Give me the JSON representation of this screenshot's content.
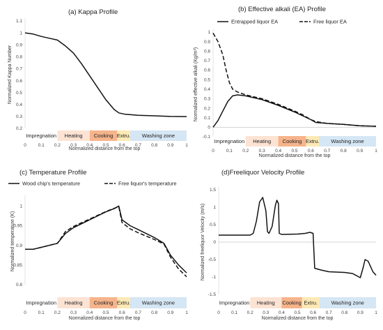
{
  "chart_data": [
    {
      "id": "a",
      "type": "line",
      "title": "(a) Kappa Profile",
      "xlabel": "Normalized distance from the top",
      "ylabel": "Normalized Kappa Number",
      "xlim": [
        0,
        1
      ],
      "ylim": [
        0.2,
        1.1
      ],
      "xticks": [
        "0",
        "0.1",
        "0.2",
        "0.3",
        "0.4",
        "0.5",
        "0.6",
        "0.7",
        "0.8",
        "0.9",
        "1"
      ],
      "yticks": [
        "0.2",
        "0.3",
        "0.4",
        "0.5",
        "0.6",
        "0.7",
        "0.8",
        "0.9",
        "1",
        "1.1"
      ],
      "zero_line": false,
      "zones": [
        {
          "label": "Impregnation",
          "from": 0,
          "to": 0.2,
          "color": "#ffffff"
        },
        {
          "label": "Heating",
          "from": 0.2,
          "to": 0.4,
          "color": "#fde3d3"
        },
        {
          "label": "Cooking",
          "from": 0.4,
          "to": 0.57,
          "color": "#f6b48b"
        },
        {
          "label": "Extru.",
          "from": 0.57,
          "to": 0.65,
          "color": "#fde9b5"
        },
        {
          "label": "Washing zone",
          "from": 0.65,
          "to": 1,
          "color": "#d5e6f4"
        }
      ],
      "series": [
        {
          "dash": false,
          "points": [
            [
              0,
              1
            ],
            [
              0.05,
              0.99
            ],
            [
              0.1,
              0.97
            ],
            [
              0.15,
              0.955
            ],
            [
              0.2,
              0.94
            ],
            [
              0.25,
              0.89
            ],
            [
              0.3,
              0.83
            ],
            [
              0.35,
              0.74
            ],
            [
              0.4,
              0.64
            ],
            [
              0.45,
              0.54
            ],
            [
              0.5,
              0.44
            ],
            [
              0.55,
              0.36
            ],
            [
              0.58,
              0.33
            ],
            [
              0.62,
              0.318
            ],
            [
              0.7,
              0.31
            ],
            [
              0.8,
              0.305
            ],
            [
              0.9,
              0.3
            ],
            [
              1,
              0.299
            ]
          ]
        }
      ]
    },
    {
      "id": "b",
      "type": "line",
      "title": "(b) Effective alkali (EA) Profile",
      "xlabel": "Normalized distance from the top",
      "ylabel": "Normalized effective alkali (Kg/m³)",
      "xlim": [
        0,
        1
      ],
      "ylim": [
        -0.1,
        1
      ],
      "xticks": [
        "0",
        "0.1",
        "0.2",
        "0.3",
        "0.4",
        "0.5",
        "0.6",
        "0.7",
        "0.8",
        "0.9",
        "1"
      ],
      "yticks": [
        "-0.1",
        "0",
        "0.1",
        "0.2",
        "0.3",
        "0.4",
        "0.5",
        "0.6",
        "0.7",
        "0.8",
        "0.9",
        "1"
      ],
      "zero_line": true,
      "zones": [
        {
          "label": "Impregnation",
          "from": 0,
          "to": 0.2,
          "color": "#ffffff"
        },
        {
          "label": "Heating",
          "from": 0.2,
          "to": 0.4,
          "color": "#fde3d3"
        },
        {
          "label": "Cooking",
          "from": 0.4,
          "to": 0.57,
          "color": "#f6b48b"
        },
        {
          "label": "Extru.",
          "from": 0.57,
          "to": 0.65,
          "color": "#fde9b5"
        },
        {
          "label": "Washing zone",
          "from": 0.65,
          "to": 1,
          "color": "#d5e6f4"
        }
      ],
      "legend": [
        "Entrapped liquor EA",
        "Free liquor EA"
      ],
      "series": [
        {
          "name": "Entrapped liquor EA",
          "dash": false,
          "points": [
            [
              0,
              0
            ],
            [
              0.03,
              0.07
            ],
            [
              0.06,
              0.17
            ],
            [
              0.09,
              0.27
            ],
            [
              0.12,
              0.33
            ],
            [
              0.15,
              0.34
            ],
            [
              0.2,
              0.33
            ],
            [
              0.3,
              0.29
            ],
            [
              0.4,
              0.23
            ],
            [
              0.5,
              0.16
            ],
            [
              0.55,
              0.12
            ],
            [
              0.6,
              0.08
            ],
            [
              0.63,
              0.05
            ],
            [
              0.7,
              0.04
            ],
            [
              0.8,
              0.03
            ],
            [
              0.9,
              0.015
            ],
            [
              1,
              0.01
            ]
          ]
        },
        {
          "name": "Free liquor EA",
          "dash": true,
          "points": [
            [
              0,
              0.99
            ],
            [
              0.03,
              0.9
            ],
            [
              0.06,
              0.76
            ],
            [
              0.08,
              0.6
            ],
            [
              0.1,
              0.47
            ],
            [
              0.12,
              0.4
            ],
            [
              0.15,
              0.37
            ],
            [
              0.2,
              0.34
            ],
            [
              0.3,
              0.3
            ],
            [
              0.4,
              0.24
            ],
            [
              0.5,
              0.17
            ],
            [
              0.55,
              0.13
            ],
            [
              0.6,
              0.08
            ],
            [
              0.63,
              0.06
            ],
            [
              0.7,
              0.04
            ],
            [
              0.8,
              0.03
            ],
            [
              0.9,
              0.015
            ],
            [
              1,
              0.01
            ]
          ]
        }
      ]
    },
    {
      "id": "c",
      "type": "line",
      "title": "(c) Temperature Profile",
      "xlabel": "Normalized distance from the top",
      "ylabel": "Normalized temperature (K)",
      "xlim": [
        0,
        1
      ],
      "ylim": [
        0.8,
        1.02
      ],
      "xticks": [
        "0",
        "0.1",
        "0.2",
        "0.3",
        "0.4",
        "0.5",
        "0.6",
        "0.7",
        "0.8",
        "0.9",
        "1"
      ],
      "yticks": [
        "0.8",
        "0.85",
        "0.9",
        "0.95",
        "1"
      ],
      "zero_line": false,
      "zones": [
        {
          "label": "Impregnation",
          "from": 0,
          "to": 0.2,
          "color": "#ffffff"
        },
        {
          "label": "Heating",
          "from": 0.2,
          "to": 0.4,
          "color": "#fde3d3"
        },
        {
          "label": "Cooking",
          "from": 0.4,
          "to": 0.57,
          "color": "#f6b48b"
        },
        {
          "label": "Extru.",
          "from": 0.57,
          "to": 0.65,
          "color": "#fde9b5"
        },
        {
          "label": "Washing zone",
          "from": 0.65,
          "to": 1,
          "color": "#d5e6f4"
        }
      ],
      "legend": [
        "Wood chip's temperature",
        "Free liquor's temperature"
      ],
      "series": [
        {
          "name": "Wood chip's temperature",
          "dash": false,
          "points": [
            [
              0,
              0.89
            ],
            [
              0.05,
              0.89
            ],
            [
              0.1,
              0.895
            ],
            [
              0.2,
              0.905
            ],
            [
              0.25,
              0.93
            ],
            [
              0.3,
              0.945
            ],
            [
              0.4,
              0.965
            ],
            [
              0.5,
              0.985
            ],
            [
              0.55,
              0.993
            ],
            [
              0.58,
              1
            ],
            [
              0.6,
              0.965
            ],
            [
              0.65,
              0.95
            ],
            [
              0.7,
              0.94
            ],
            [
              0.8,
              0.92
            ],
            [
              0.86,
              0.905
            ],
            [
              0.9,
              0.875
            ],
            [
              0.95,
              0.85
            ],
            [
              1,
              0.83
            ]
          ]
        },
        {
          "name": "Free liquor's temperature",
          "dash": true,
          "points": [
            [
              0,
              0.89
            ],
            [
              0.05,
              0.89
            ],
            [
              0.1,
              0.895
            ],
            [
              0.2,
              0.905
            ],
            [
              0.25,
              0.935
            ],
            [
              0.3,
              0.948
            ],
            [
              0.4,
              0.967
            ],
            [
              0.5,
              0.986
            ],
            [
              0.55,
              0.994
            ],
            [
              0.58,
              0.998
            ],
            [
              0.6,
              0.958
            ],
            [
              0.65,
              0.942
            ],
            [
              0.7,
              0.932
            ],
            [
              0.8,
              0.915
            ],
            [
              0.86,
              0.903
            ],
            [
              0.9,
              0.87
            ],
            [
              0.95,
              0.84
            ],
            [
              1,
              0.82
            ]
          ]
        }
      ]
    },
    {
      "id": "d",
      "type": "line",
      "title": "(d)Freeliquor Velocity Profile",
      "xlabel": "Normalized distance from the top",
      "ylabel": "Normalized freeliquor Velocity (m/s)",
      "xlim": [
        0,
        1
      ],
      "ylim": [
        -1.5,
        1.5
      ],
      "xticks": [
        "0",
        "0.1",
        "0.2",
        "0.3",
        "0.4",
        "0.5",
        "0.6",
        "0.7",
        "0.8",
        "0.9",
        "1"
      ],
      "yticks": [
        "-1.5",
        "-1",
        "-0.5",
        "0",
        "0.5",
        "1",
        "1.5"
      ],
      "zero_line": true,
      "zones": [
        {
          "label": "Impregnation",
          "from": 0,
          "to": 0.2,
          "color": "#ffffff"
        },
        {
          "label": "Heating",
          "from": 0.2,
          "to": 0.4,
          "color": "#fde3d3"
        },
        {
          "label": "Cooking",
          "from": 0.4,
          "to": 0.53,
          "color": "#f6b48b"
        },
        {
          "label": "Extru.",
          "from": 0.53,
          "to": 0.64,
          "color": "#fde9b5"
        },
        {
          "label": "Washing zone",
          "from": 0.64,
          "to": 1,
          "color": "#d5e6f4"
        }
      ],
      "series": [
        {
          "dash": false,
          "points": [
            [
              0,
              0.2
            ],
            [
              0.1,
              0.2
            ],
            [
              0.2,
              0.2
            ],
            [
              0.22,
              0.25
            ],
            [
              0.24,
              0.6
            ],
            [
              0.26,
              1.15
            ],
            [
              0.28,
              1.28
            ],
            [
              0.3,
              0.9
            ],
            [
              0.31,
              0.3
            ],
            [
              0.32,
              0.25
            ],
            [
              0.34,
              0.45
            ],
            [
              0.36,
              1.05
            ],
            [
              0.37,
              1.2
            ],
            [
              0.38,
              1.1
            ],
            [
              0.385,
              0.25
            ],
            [
              0.4,
              0.22
            ],
            [
              0.5,
              0.23
            ],
            [
              0.55,
              0.25
            ],
            [
              0.58,
              0.28
            ],
            [
              0.6,
              0.25
            ],
            [
              0.61,
              -0.75
            ],
            [
              0.65,
              -0.8
            ],
            [
              0.7,
              -0.85
            ],
            [
              0.8,
              -0.87
            ],
            [
              0.85,
              -0.9
            ],
            [
              0.9,
              -1.02
            ],
            [
              0.92,
              -0.7
            ],
            [
              0.93,
              -0.5
            ],
            [
              0.95,
              -0.55
            ],
            [
              0.98,
              -0.85
            ],
            [
              1,
              -0.95
            ]
          ]
        }
      ]
    }
  ]
}
